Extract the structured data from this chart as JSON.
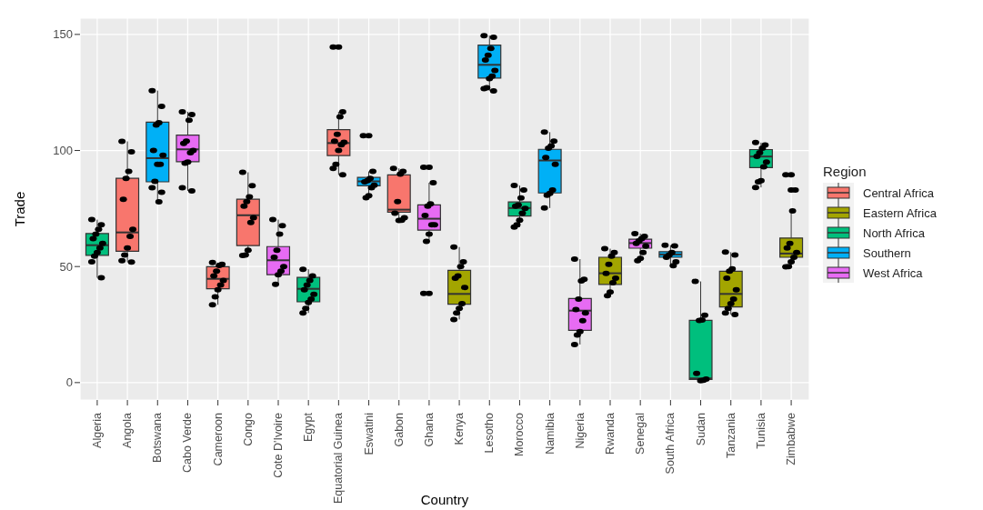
{
  "chart_data": {
    "type": "box",
    "xlabel": "Country",
    "ylabel": "Trade",
    "legend_title": "Region",
    "legend": "right",
    "grid": true,
    "categories": [
      "Algeria",
      "Angola",
      "Botswana",
      "Cabo Verde",
      "Cameroon",
      "Congo",
      "Cote D'Ivoire",
      "Egypt",
      "Equatorial Guinea",
      "Eswatini",
      "Gabon",
      "Ghana",
      "Kenya",
      "Lesotho",
      "Morocco",
      "Namibia",
      "Nigeria",
      "Rwanda",
      "Senegal",
      "South Africa",
      "Sudan",
      "Tanzania",
      "Tunisia",
      "Zimbabwe"
    ],
    "ylim": [
      -7.5,
      157
    ],
    "yticks": [
      0,
      50,
      100,
      150
    ],
    "series": [
      {
        "name": "Central Africa",
        "color": "#f8766d",
        "boxes": [
          null,
          {
            "low": 51.9,
            "q1": 56.6,
            "median": 64.7,
            "q3": 88.0,
            "high": 103.9
          },
          null,
          null,
          {
            "low": 33.5,
            "q1": 40.4,
            "median": 44.7,
            "q3": 49.9,
            "high": 51.7
          },
          {
            "low": 54.8,
            "q1": 59.0,
            "median": 72.1,
            "q3": 79.0,
            "high": 90.6
          },
          null,
          null,
          {
            "low": 89.5,
            "q1": 97.8,
            "median": 103.2,
            "q3": 109.0,
            "high": 116.7,
            "outliers": [
              144.6
            ]
          },
          null,
          {
            "low": 69.9,
            "q1": 73.4,
            "median": 74.5,
            "q3": 89.5,
            "high": 92.3
          },
          null,
          null,
          null,
          null,
          null,
          null,
          null,
          null,
          null,
          null,
          null,
          null,
          null
        ]
      },
      {
        "name": "Eastern Africa",
        "color": "#a3a500",
        "boxes": [
          null,
          null,
          null,
          null,
          null,
          null,
          null,
          null,
          null,
          null,
          null,
          null,
          {
            "low": 27.2,
            "q1": 33.8,
            "median": 38.2,
            "q3": 48.4,
            "high": 58.4
          },
          null,
          null,
          null,
          null,
          {
            "low": 37.4,
            "q1": 42.3,
            "median": 47.1,
            "q3": 54.0,
            "high": 57.7
          },
          null,
          null,
          null,
          {
            "low": 29.3,
            "q1": 32.6,
            "median": 38.2,
            "q3": 48.0,
            "high": 56.2
          },
          null,
          {
            "low": 49.9,
            "q1": 54.0,
            "median": 55.6,
            "q3": 62.3,
            "high": 74.0,
            "outliers": [
              89.5,
              83.0
            ]
          }
        ]
      },
      {
        "name": "North Africa",
        "color": "#00bf7d",
        "boxes": [
          {
            "low": 45.2,
            "q1": 54.8,
            "median": 59.2,
            "q3": 64.2,
            "high": 70.2
          },
          null,
          null,
          null,
          null,
          null,
          null,
          {
            "low": 30.0,
            "q1": 34.8,
            "median": 40.4,
            "q3": 45.3,
            "high": 48.8
          },
          null,
          null,
          null,
          null,
          null,
          null,
          {
            "low": 67.0,
            "q1": 71.8,
            "median": 75.2,
            "q3": 77.8,
            "high": 84.9
          },
          null,
          null,
          null,
          null,
          null,
          {
            "low": 0.8,
            "q1": 1.4,
            "median": 1.8,
            "q3": 26.8,
            "high": 43.6
          },
          null,
          {
            "low": 84.1,
            "q1": 92.6,
            "median": 97.4,
            "q3": 100.4,
            "high": 103.4
          },
          null
        ]
      },
      {
        "name": "Southern",
        "color": "#00b0f6",
        "boxes": [
          null,
          null,
          {
            "low": 77.9,
            "q1": 86.5,
            "median": 96.7,
            "q3": 112.2,
            "high": 125.8
          },
          null,
          null,
          null,
          null,
          null,
          null,
          {
            "low": 79.6,
            "q1": 84.8,
            "median": 86.7,
            "q3": 88.4,
            "high": 91.0,
            "outliers": [
              106.4
            ]
          },
          null,
          null,
          null,
          {
            "low": 125.7,
            "q1": 131.2,
            "median": 136.9,
            "q3": 145.4,
            "high": 149.5
          },
          null,
          {
            "low": 75.2,
            "q1": 81.7,
            "median": 95.7,
            "q3": 100.5,
            "high": 107.9
          },
          null,
          null,
          null,
          {
            "low": 50.4,
            "q1": 54.0,
            "median": 55.2,
            "q3": 56.4,
            "high": 59.2
          },
          null,
          null,
          null,
          null
        ]
      },
      {
        "name": "West Africa",
        "color": "#e76bf3",
        "boxes": [
          null,
          null,
          null,
          {
            "low": 82.6,
            "q1": 95.2,
            "median": 100.5,
            "q3": 106.6,
            "high": 116.7
          },
          null,
          null,
          {
            "low": 42.3,
            "q1": 46.5,
            "median": 52.7,
            "q3": 58.6,
            "high": 70.2
          },
          null,
          null,
          null,
          null,
          {
            "low": 60.8,
            "q1": 65.7,
            "median": 70.6,
            "q3": 76.6,
            "high": 86.1,
            "outliers": [
              92.8,
              38.4
            ]
          },
          null,
          null,
          null,
          null,
          {
            "low": 16.4,
            "q1": 22.5,
            "median": 31.0,
            "q3": 36.2,
            "high": 53.2
          },
          null,
          {
            "low": 52.5,
            "q1": 57.9,
            "median": 60.1,
            "q3": 61.8,
            "high": 64.2
          },
          null,
          null,
          null,
          null,
          null
        ]
      },
      {
        "type": "scatter",
        "color": "#000000",
        "marker": "circle",
        "x": [
          "Algeria",
          "Algeria",
          "Algeria",
          "Algeria",
          "Algeria",
          "Algeria",
          "Algeria",
          "Algeria",
          "Algeria",
          "Algeria",
          "Algeria",
          "Angola",
          "Angola",
          "Angola",
          "Angola",
          "Angola",
          "Angola",
          "Angola",
          "Angola",
          "Angola",
          "Angola",
          "Angola",
          "Botswana",
          "Botswana",
          "Botswana",
          "Botswana",
          "Botswana",
          "Botswana",
          "Botswana",
          "Botswana",
          "Botswana",
          "Botswana",
          "Botswana",
          "Botswana",
          "Cabo Verde",
          "Cabo Verde",
          "Cabo Verde",
          "Cabo Verde",
          "Cabo Verde",
          "Cabo Verde",
          "Cabo Verde",
          "Cabo Verde",
          "Cabo Verde",
          "Cabo Verde",
          "Cabo Verde",
          "Cameroon",
          "Cameroon",
          "Cameroon",
          "Cameroon",
          "Cameroon",
          "Cameroon",
          "Cameroon",
          "Cameroon",
          "Cameroon",
          "Cameroon",
          "Congo",
          "Congo",
          "Congo",
          "Congo",
          "Congo",
          "Congo",
          "Congo",
          "Congo",
          "Congo",
          "Congo",
          "Cote D'Ivoire",
          "Cote D'Ivoire",
          "Cote D'Ivoire",
          "Cote D'Ivoire",
          "Cote D'Ivoire",
          "Cote D'Ivoire",
          "Cote D'Ivoire",
          "Cote D'Ivoire",
          "Cote D'Ivoire",
          "Egypt",
          "Egypt",
          "Egypt",
          "Egypt",
          "Egypt",
          "Egypt",
          "Egypt",
          "Egypt",
          "Egypt",
          "Egypt",
          "Equatorial Guinea",
          "Equatorial Guinea",
          "Equatorial Guinea",
          "Equatorial Guinea",
          "Equatorial Guinea",
          "Equatorial Guinea",
          "Equatorial Guinea",
          "Equatorial Guinea",
          "Equatorial Guinea",
          "Equatorial Guinea",
          "Equatorial Guinea",
          "Eswatini",
          "Eswatini",
          "Eswatini",
          "Eswatini",
          "Eswatini",
          "Eswatini",
          "Eswatini",
          "Eswatini",
          "Eswatini",
          "Gabon",
          "Gabon",
          "Gabon",
          "Gabon",
          "Gabon",
          "Gabon",
          "Gabon",
          "Gabon",
          "Ghana",
          "Ghana",
          "Ghana",
          "Ghana",
          "Ghana",
          "Ghana",
          "Ghana",
          "Ghana",
          "Ghana",
          "Ghana",
          "Kenya",
          "Kenya",
          "Kenya",
          "Kenya",
          "Kenya",
          "Kenya",
          "Kenya",
          "Kenya",
          "Kenya",
          "Kenya",
          "Lesotho",
          "Lesotho",
          "Lesotho",
          "Lesotho",
          "Lesotho",
          "Lesotho",
          "Lesotho",
          "Lesotho",
          "Lesotho",
          "Lesotho",
          "Lesotho",
          "Morocco",
          "Morocco",
          "Morocco",
          "Morocco",
          "Morocco",
          "Morocco",
          "Morocco",
          "Morocco",
          "Morocco",
          "Morocco",
          "Namibia",
          "Namibia",
          "Namibia",
          "Namibia",
          "Namibia",
          "Namibia",
          "Namibia",
          "Namibia",
          "Namibia",
          "Namibia",
          "Nigeria",
          "Nigeria",
          "Nigeria",
          "Nigeria",
          "Nigeria",
          "Nigeria",
          "Nigeria",
          "Nigeria",
          "Nigeria",
          "Nigeria",
          "Rwanda",
          "Rwanda",
          "Rwanda",
          "Rwanda",
          "Rwanda",
          "Rwanda",
          "Rwanda",
          "Rwanda",
          "Rwanda",
          "Senegal",
          "Senegal",
          "Senegal",
          "Senegal",
          "Senegal",
          "Senegal",
          "Senegal",
          "Senegal",
          "Senegal",
          "South Africa",
          "South Africa",
          "South Africa",
          "South Africa",
          "South Africa",
          "South Africa",
          "South Africa",
          "Sudan",
          "Sudan",
          "Sudan",
          "Sudan",
          "Sudan",
          "Sudan",
          "Sudan",
          "Sudan",
          "Tanzania",
          "Tanzania",
          "Tanzania",
          "Tanzania",
          "Tanzania",
          "Tanzania",
          "Tanzania",
          "Tanzania",
          "Tanzania",
          "Tanzania",
          "Tanzania",
          "Tunisia",
          "Tunisia",
          "Tunisia",
          "Tunisia",
          "Tunisia",
          "Tunisia",
          "Tunisia",
          "Tunisia",
          "Tunisia",
          "Tunisia",
          "Zimbabwe",
          "Zimbabwe",
          "Zimbabwe",
          "Zimbabwe",
          "Zimbabwe",
          "Zimbabwe",
          "Zimbabwe",
          "Zimbabwe",
          "Zimbabwe",
          "Zimbabwe"
        ],
        "values": [
          70.2,
          68,
          66,
          64,
          62,
          60,
          58,
          56,
          54.5,
          52,
          45.2,
          103.9,
          99.4,
          91,
          88,
          79,
          66,
          63,
          58,
          55,
          52.5,
          51.9,
          125.8,
          119,
          112,
          111,
          100,
          98,
          94,
          94,
          86.7,
          84,
          82,
          77.9,
          116.7,
          115.5,
          113,
          104,
          103,
          100,
          99,
          95,
          94.5,
          84,
          82.6,
          51.7,
          51,
          50.5,
          48,
          46,
          44,
          42,
          40,
          37,
          33.5,
          90.6,
          84.8,
          80,
          78,
          76,
          71,
          69,
          57,
          55,
          54.8,
          70.2,
          67.6,
          64,
          57,
          54,
          50,
          48,
          46.5,
          42.3,
          48.8,
          46,
          44,
          42,
          40,
          38,
          36,
          34.5,
          32,
          30,
          144.6,
          116.7,
          114.5,
          107,
          104,
          103.5,
          102.5,
          100,
          94,
          92.3,
          89.5,
          106.4,
          91,
          88,
          87,
          86.5,
          85,
          84,
          80.5,
          79.6,
          92.3,
          91,
          89.8,
          78,
          73,
          71,
          70,
          69.9,
          92.8,
          86.1,
          77,
          76,
          72,
          68,
          68,
          64,
          60.8,
          38.4,
          58.4,
          52,
          50,
          46,
          45,
          41,
          34,
          32,
          30,
          27.2,
          149.5,
          148.8,
          144,
          141,
          139,
          134.5,
          132,
          131,
          127,
          126.6,
          125.7,
          84.9,
          83,
          79.5,
          76.5,
          76,
          75,
          73,
          70,
          68,
          67,
          107.9,
          104,
          102,
          101,
          97,
          94,
          83,
          81.5,
          80.7,
          75.2,
          53.2,
          44.5,
          43.8,
          36,
          31.5,
          30,
          26.7,
          22,
          20.5,
          16.4,
          57.7,
          56,
          54.5,
          51,
          47,
          45,
          43,
          39,
          37.4,
          64.2,
          63,
          62,
          61,
          60,
          58.8,
          56,
          53.5,
          52.5,
          59.2,
          58.9,
          56,
          55,
          54,
          52,
          50.4,
          43.6,
          29,
          27,
          26.8,
          4,
          1.5,
          1,
          0.8,
          56.2,
          55,
          49,
          48,
          45,
          40,
          36,
          34,
          32,
          30,
          29.3,
          103.4,
          102.4,
          101,
          99,
          97.5,
          95,
          93,
          87,
          86.5,
          84.1,
          89.5,
          83,
          74,
          60,
          58,
          56,
          54,
          52,
          50,
          49.9
        ]
      }
    ]
  }
}
